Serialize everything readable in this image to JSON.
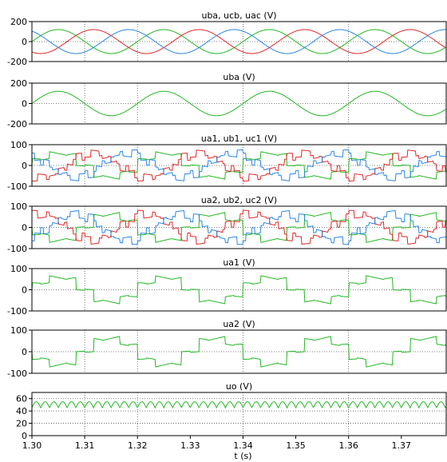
{
  "colors": {
    "green": "#22b822",
    "red": "#e02828",
    "blue": "#2a86e6",
    "grid": "#555555",
    "frame": "#000000"
  },
  "chart_data": [
    {
      "type": "line",
      "title": "uba, ucb, uac (V)",
      "ylim": [
        -200,
        200
      ],
      "yticks": [
        200,
        0,
        -200
      ],
      "series": [
        {
          "name": "uba",
          "color": "green",
          "kind": "sine",
          "amplitude": 120,
          "frequency_hz": 50,
          "phase_deg": 0
        },
        {
          "name": "ucb",
          "color": "red",
          "kind": "sine",
          "amplitude": 120,
          "frequency_hz": 50,
          "phase_deg": -120
        },
        {
          "name": "uac",
          "color": "blue",
          "kind": "sine",
          "amplitude": 120,
          "frequency_hz": 50,
          "phase_deg": 120
        }
      ]
    },
    {
      "type": "line",
      "title": "uba (V)",
      "ylim": [
        -200,
        200
      ],
      "yticks": [
        200,
        0,
        -200
      ],
      "series": [
        {
          "name": "uba",
          "color": "green",
          "kind": "sine",
          "amplitude": 120,
          "frequency_hz": 50,
          "phase_deg": 0
        }
      ]
    },
    {
      "type": "line",
      "title": "ua1, ub1, uc1 (V)",
      "ylim": [
        -100,
        100
      ],
      "yticks": [
        100,
        0,
        -100
      ],
      "series": [
        {
          "name": "ua1",
          "color": "green",
          "kind": "pwm",
          "amplitude": 70,
          "frequency_hz": 50,
          "phase_deg": 0
        },
        {
          "name": "ub1",
          "color": "red",
          "kind": "pwm",
          "amplitude": 70,
          "frequency_hz": 50,
          "phase_deg": -120
        },
        {
          "name": "uc1",
          "color": "blue",
          "kind": "pwm",
          "amplitude": 70,
          "frequency_hz": 50,
          "phase_deg": 120
        }
      ]
    },
    {
      "type": "line",
      "title": "ua2, ub2, uc2 (V)",
      "ylim": [
        -100,
        100
      ],
      "yticks": [
        100,
        0,
        -100
      ],
      "series": [
        {
          "name": "ua2",
          "color": "green",
          "kind": "pwm",
          "amplitude": 75,
          "frequency_hz": 50,
          "phase_deg": 180
        },
        {
          "name": "ub2",
          "color": "red",
          "kind": "pwm",
          "amplitude": 75,
          "frequency_hz": 50,
          "phase_deg": 60
        },
        {
          "name": "uc2",
          "color": "blue",
          "kind": "pwm",
          "amplitude": 75,
          "frequency_hz": 50,
          "phase_deg": -60
        }
      ]
    },
    {
      "type": "line",
      "title": "ua1 (V)",
      "ylim": [
        -100,
        100
      ],
      "yticks": [
        100,
        0,
        -100
      ],
      "series": [
        {
          "name": "ua1",
          "color": "green",
          "kind": "pwm",
          "amplitude": 70,
          "frequency_hz": 50,
          "phase_deg": 0
        }
      ]
    },
    {
      "type": "line",
      "title": "ua2 (V)",
      "ylim": [
        -100,
        100
      ],
      "yticks": [
        100,
        0,
        -100
      ],
      "series": [
        {
          "name": "ua2",
          "color": "green",
          "kind": "pwm",
          "amplitude": 75,
          "frequency_hz": 50,
          "phase_deg": 180
        }
      ]
    },
    {
      "type": "line",
      "title": "uo (V)",
      "ylim": [
        0,
        70
      ],
      "yticks": [
        60,
        40,
        20,
        0
      ],
      "series": [
        {
          "name": "uo",
          "color": "green",
          "kind": "ripple",
          "mean": 50,
          "ripple": 10,
          "frequency_hz": 600
        }
      ]
    }
  ],
  "x_axis": {
    "label": "t (s)",
    "xlim": [
      1.3,
      1.3785
    ],
    "ticks": [
      "1.30",
      "1.31",
      "1.32",
      "1.33",
      "1.34",
      "1.35",
      "1.36",
      "1.37"
    ],
    "tick_values": [
      1.3,
      1.31,
      1.32,
      1.33,
      1.34,
      1.35,
      1.36,
      1.37
    ],
    "grid_at": [
      1.31,
      1.32,
      1.34,
      1.36
    ]
  }
}
